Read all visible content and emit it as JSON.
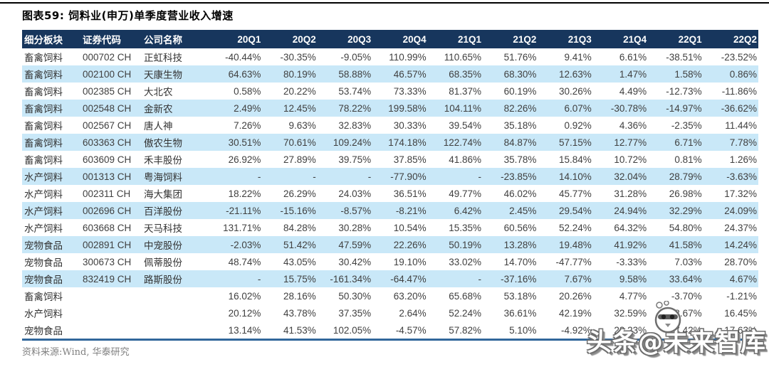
{
  "figure": {
    "title": "图表59:  饲料业(申万)单季度营业收入增速",
    "source": "资料来源:Wind, 华泰研究"
  },
  "watermark": {
    "text": "头条@未来智库",
    "icon": "penguin-logo"
  },
  "colors": {
    "header_bg": "#17365D",
    "header_text": "#FFFFFF",
    "alt_row_bg": "#C9E8F8",
    "top_rule": "#000000",
    "bottom_rule": "#31679B",
    "body_text": "#404040",
    "source_text": "#808080"
  },
  "chart_data": {
    "type": "table",
    "title": "图表59:  饲料业(申万)单季度营业收入增速",
    "source": "资料来源:Wind, 华泰研究",
    "columns": [
      "细分板块",
      "证券代码",
      "公司名称",
      "20Q1",
      "20Q2",
      "20Q3",
      "20Q4",
      "21Q1",
      "21Q2",
      "21Q3",
      "21Q4",
      "22Q1",
      "22Q2"
    ],
    "rows": [
      [
        "畜禽饲料",
        "000702 CH",
        "正虹科技",
        "-40.44%",
        "-30.35%",
        "-9.05%",
        "110.99%",
        "110.65%",
        "51.76%",
        "9.41%",
        "6.61%",
        "-38.51%",
        "-23.52%"
      ],
      [
        "畜禽饲料",
        "002100 CH",
        "天康生物",
        "64.63%",
        "80.19%",
        "58.88%",
        "46.57%",
        "68.35%",
        "68.30%",
        "12.63%",
        "1.47%",
        "1.58%",
        "0.86%"
      ],
      [
        "畜禽饲料",
        "002385 CH",
        "大北农",
        "0.58%",
        "20.22%",
        "53.74%",
        "73.33%",
        "81.37%",
        "60.19%",
        "30.26%",
        "4.49%",
        "-12.73%",
        "-11.86%"
      ],
      [
        "畜禽饲料",
        "002548 CH",
        "金新农",
        "2.49%",
        "12.45%",
        "78.22%",
        "199.58%",
        "104.11%",
        "82.26%",
        "6.07%",
        "-30.78%",
        "-14.97%",
        "-36.62%"
      ],
      [
        "畜禽饲料",
        "002567 CH",
        "唐人神",
        "7.26%",
        "9.63%",
        "32.83%",
        "30.33%",
        "39.54%",
        "35.18%",
        "0.92%",
        "4.36%",
        "-2.35%",
        "11.44%"
      ],
      [
        "畜禽饲料",
        "603363 CH",
        "傲农生物",
        "30.51%",
        "70.61%",
        "109.24%",
        "174.18%",
        "122.74%",
        "84.87%",
        "57.15%",
        "12.77%",
        "6.71%",
        "7.78%"
      ],
      [
        "畜禽饲料",
        "603609 CH",
        "禾丰股份",
        "26.92%",
        "27.89%",
        "39.75%",
        "37.85%",
        "41.86%",
        "35.78%",
        "15.84%",
        "10.72%",
        "0.81%",
        "1.26%"
      ],
      [
        "水产饲料",
        "001313 CH",
        "粤海饲料",
        "-",
        "-",
        "-",
        "-77.90%",
        "-",
        "-23.85%",
        "14.10%",
        "32.04%",
        "28.79%",
        "-3.63%"
      ],
      [
        "水产饲料",
        "002311 CH",
        "海大集团",
        "18.22%",
        "26.29%",
        "24.03%",
        "36.51%",
        "49.77%",
        "46.02%",
        "45.77%",
        "31.28%",
        "26.98%",
        "17.32%"
      ],
      [
        "水产饲料",
        "002696 CH",
        "百洋股份",
        "-21.11%",
        "-15.16%",
        "-8.57%",
        "-8.21%",
        "6.42%",
        "2.45%",
        "29.54%",
        "24.94%",
        "32.29%",
        "24.09%"
      ],
      [
        "水产饲料",
        "603668 CH",
        "天马科技",
        "131.71%",
        "84.28%",
        "30.28%",
        "10.54%",
        "15.35%",
        "60.56%",
        "52.24%",
        "64.32%",
        "54.80%",
        "24.37%"
      ],
      [
        "宠物食品",
        "002891 CH",
        "中宠股份",
        "-2.03%",
        "51.42%",
        "47.59%",
        "22.26%",
        "50.19%",
        "13.28%",
        "19.48%",
        "41.92%",
        "41.58%",
        "14.24%"
      ],
      [
        "宠物食品",
        "300673 CH",
        "佩蒂股份",
        "48.74%",
        "43.05%",
        "30.42%",
        "19.10%",
        "33.02%",
        "14.70%",
        "-47.77%",
        "-3.33%",
        "7.03%",
        "28.70%"
      ],
      [
        "宠物食品",
        "832419 CH",
        "路斯股份",
        "-",
        "15.75%",
        "-161.34%",
        "-64.47%",
        "-",
        "-37.16%",
        "7.67%",
        "9.58%",
        "33.64%",
        "4.67%"
      ],
      [
        "畜禽饲料",
        "",
        "",
        "16.02%",
        "28.16%",
        "50.30%",
        "63.20%",
        "65.68%",
        "53.18%",
        "20.26%",
        "4.77%",
        "-3.70%",
        "-1.21%"
      ],
      [
        "水产饲料",
        "",
        "",
        "20.12%",
        "43.78%",
        "37.35%",
        "2.64%",
        "52.24%",
        "36.61%",
        "42.19%",
        "32.59%",
        "28.67%",
        "16.45%"
      ],
      [
        "宠物食品",
        "",
        "",
        "13.14%",
        "41.53%",
        "102.05%",
        "-4.57%",
        "57.82%",
        "5.10%",
        "-4.92%",
        "23.23%",
        "27.42%",
        "17.63%"
      ]
    ]
  }
}
